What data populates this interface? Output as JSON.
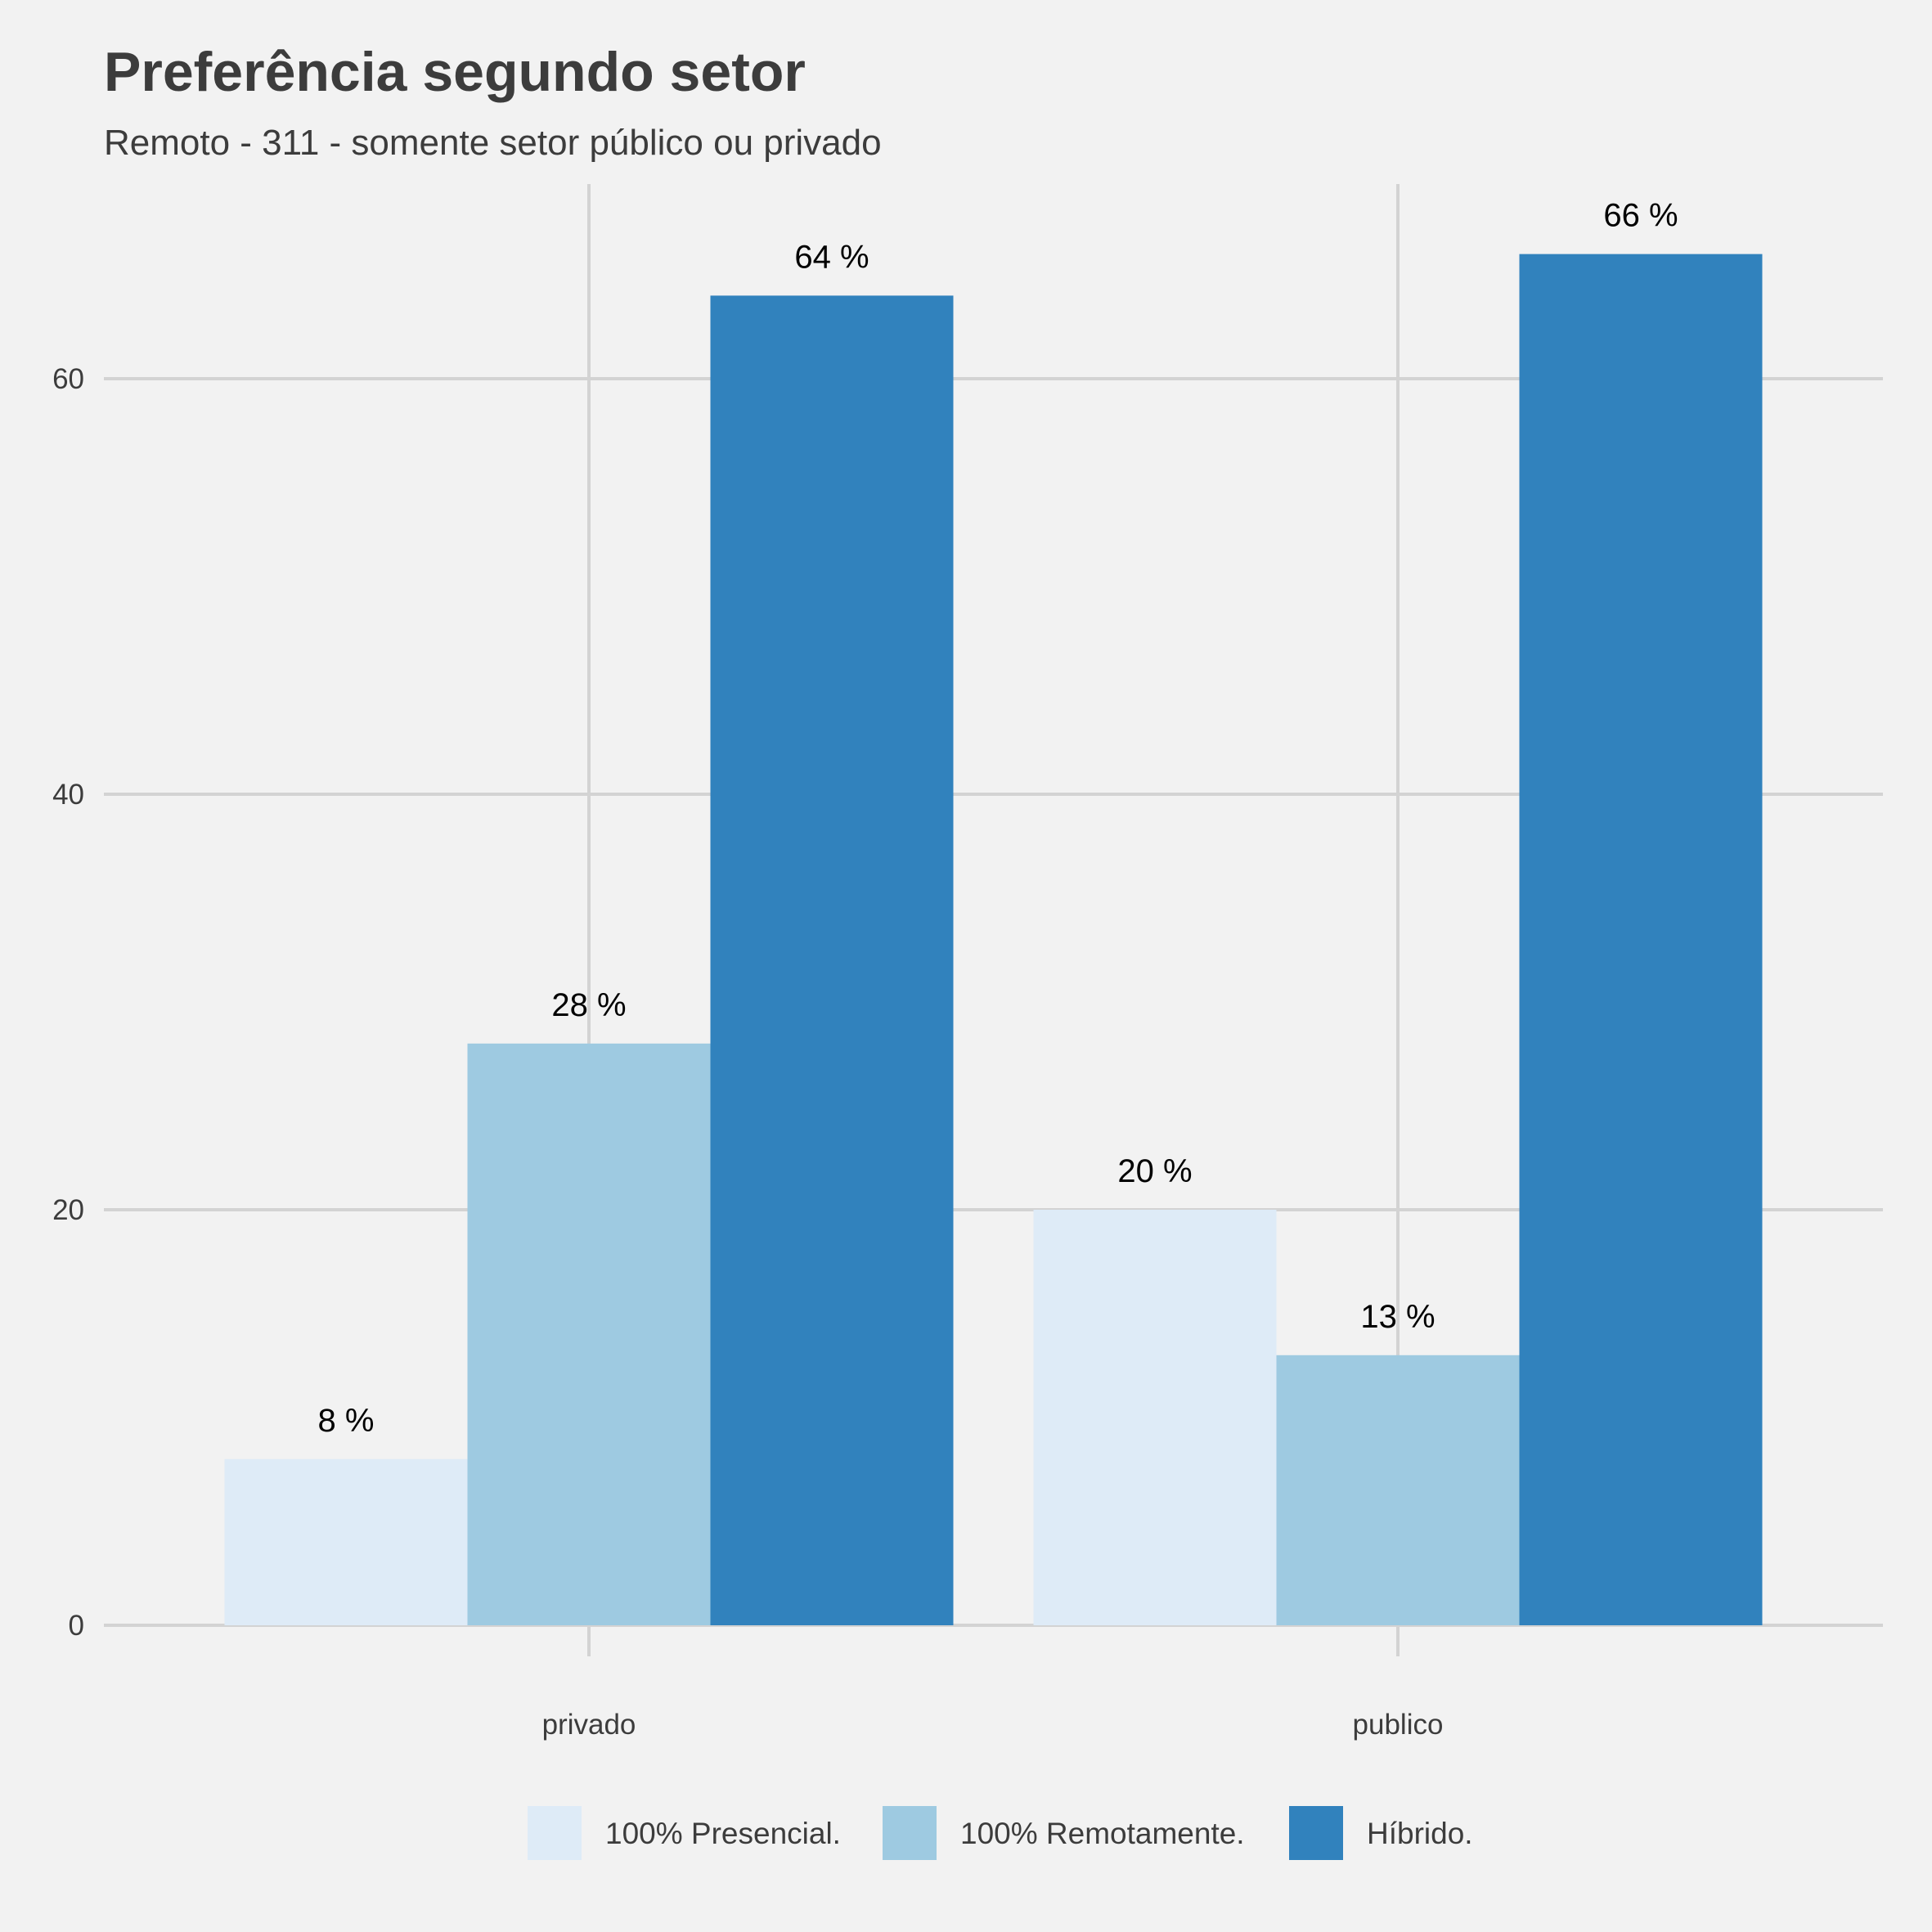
{
  "chart_data": {
    "type": "bar",
    "title": "Preferência segundo setor",
    "subtitle": "Remoto - 311 - somente setor público ou privado",
    "xlabel": "",
    "ylabel": "",
    "categories": [
      "privado",
      "publico"
    ],
    "series": [
      {
        "name": "100% Presencial.",
        "color": "#deebf7",
        "values": [
          8,
          20
        ],
        "labels": [
          "8 %",
          "20 %"
        ]
      },
      {
        "name": "100% Remotamente.",
        "color": "#9ecae1",
        "values": [
          28,
          13
        ],
        "labels": [
          "28 %",
          "13 %"
        ]
      },
      {
        "name": "Híbrido.",
        "color": "#3182bd",
        "values": [
          64,
          66
        ],
        "labels": [
          "64 %",
          "66 %"
        ]
      }
    ],
    "yticks": [
      0,
      20,
      40,
      60
    ],
    "ylim": [
      0,
      69.3
    ],
    "grid": true,
    "legend_position": "bottom",
    "background": "#f2f2f2"
  }
}
